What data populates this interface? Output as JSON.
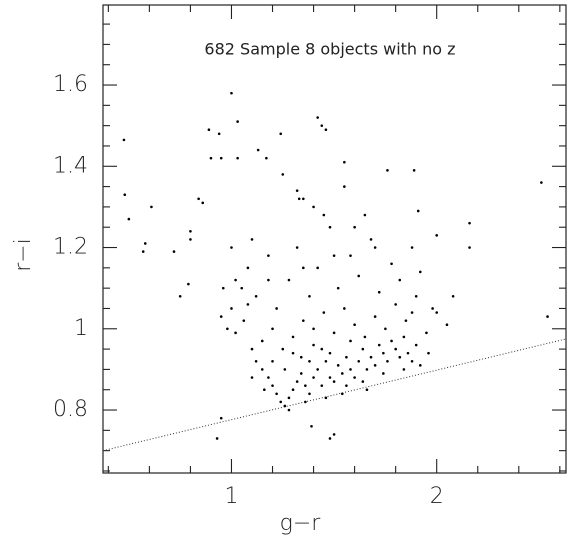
{
  "chart_data": {
    "type": "scatter",
    "annotation": "682 Sample 8 objects with no z",
    "x_label": "g−r",
    "y_label": "r−i",
    "color": "#000000",
    "x": [
      0.476,
      0.48,
      0.61,
      0.57,
      0.58,
      0.5,
      1.0,
      1.03,
      0.89,
      0.94,
      0.9,
      0.95,
      1.03,
      1.13,
      1.17,
      1.24,
      1.42,
      1.44,
      1.46,
      1.55,
      1.89,
      1.76,
      2.51,
      2.54,
      1.39,
      1.48,
      1.5,
      0.93,
      0.95,
      0.72,
      0.8,
      0.8,
      0.75,
      0.79,
      0.84,
      0.86,
      1.32,
      1.33,
      2.16,
      2.16,
      2.0,
      2.08,
      1.91,
      1.1,
      1.12,
      1.15,
      1.18,
      1.2,
      1.22,
      1.24,
      1.26,
      1.28,
      1.3,
      1.32,
      1.34,
      1.36,
      1.38,
      1.4,
      1.42,
      1.44,
      1.46,
      1.48,
      1.5,
      1.52,
      1.54,
      1.56,
      1.58,
      1.6,
      1.62,
      1.64,
      1.66,
      1.68,
      1.7,
      1.72,
      1.74,
      1.76,
      1.78,
      1.8,
      1.82,
      1.84,
      1.86,
      1.88,
      1.9,
      1.15,
      1.2,
      1.25,
      1.3,
      1.35,
      1.4,
      1.45,
      1.5,
      1.55,
      1.6,
      1.65,
      1.7,
      1.75,
      1.8,
      1.85,
      1.9,
      1.95,
      2.0,
      2.05,
      1.05,
      1.0,
      0.95,
      0.98,
      1.02,
      1.08,
      1.12,
      1.18,
      1.22,
      1.28,
      1.32,
      1.38,
      1.42,
      1.48,
      1.52,
      1.58,
      1.62,
      1.68,
      1.72,
      1.78,
      1.82,
      1.88,
      1.92,
      1.98,
      1.26,
      1.34,
      1.44,
      1.54,
      1.64,
      1.74,
      1.84,
      1.16,
      1.36,
      1.46,
      1.56,
      1.66,
      1.28,
      1.38,
      1.48,
      1.58,
      1.4,
      1.3,
      1.2,
      1.1,
      1.02,
      1.06,
      0.96,
      1.0,
      1.1,
      1.45,
      1.4,
      1.55,
      1.6,
      1.25,
      1.35,
      1.65,
      1.7,
      1.5,
      1.35,
      1.18,
      1.08,
      1.92,
      1.96,
      1.88
    ],
    "values": [
      1.465,
      1.33,
      1.3,
      1.19,
      1.21,
      1.27,
      1.58,
      1.51,
      1.49,
      1.48,
      1.42,
      1.42,
      1.42,
      1.44,
      1.42,
      1.48,
      1.52,
      1.5,
      1.49,
      1.41,
      1.39,
      1.39,
      1.36,
      1.03,
      0.76,
      0.73,
      0.74,
      0.73,
      0.78,
      1.19,
      1.24,
      1.22,
      1.08,
      1.11,
      1.32,
      1.31,
      1.34,
      1.32,
      1.26,
      1.2,
      1.23,
      1.08,
      1.29,
      0.95,
      0.92,
      0.9,
      0.88,
      0.86,
      0.84,
      0.82,
      0.81,
      0.83,
      0.85,
      0.87,
      0.89,
      0.86,
      0.84,
      0.88,
      0.9,
      0.86,
      0.92,
      0.88,
      0.87,
      0.91,
      0.89,
      0.93,
      0.9,
      0.88,
      0.92,
      0.95,
      0.9,
      0.93,
      0.91,
      0.96,
      0.94,
      0.92,
      0.97,
      0.95,
      0.93,
      0.98,
      0.94,
      0.92,
      0.96,
      0.97,
      1.0,
      0.95,
      0.98,
      1.02,
      0.96,
      1.04,
      0.99,
      1.05,
      1.01,
      0.98,
      1.03,
      1.0,
      1.06,
      1.02,
      1.08,
      0.99,
      1.04,
      1.01,
      1.1,
      1.05,
      1.03,
      1.0,
      1.12,
      1.15,
      1.08,
      1.18,
      1.05,
      1.12,
      1.2,
      1.08,
      1.15,
      1.25,
      1.1,
      1.18,
      1.13,
      1.22,
      1.09,
      1.16,
      1.12,
      1.2,
      1.14,
      1.05,
      0.9,
      0.93,
      0.95,
      0.84,
      0.87,
      0.89,
      0.9,
      0.85,
      0.82,
      0.83,
      0.86,
      0.85,
      0.8,
      0.92,
      0.94,
      0.97,
      1.0,
      0.94,
      0.92,
      0.88,
      0.99,
      1.02,
      1.1,
      1.2,
      1.22,
      1.28,
      1.3,
      1.35,
      1.25,
      1.38,
      1.32,
      1.28,
      1.2,
      1.18,
      1.15,
      1.12,
      1.06,
      0.91,
      0.94,
      1.04
    ],
    "reference_line": {
      "x": [
        0.374,
        2.63
      ],
      "y": [
        0.7,
        0.975
      ],
      "style": "dotted"
    },
    "xlim": [
      0.374,
      2.63
    ],
    "ylim": [
      0.645,
      1.797
    ],
    "xticks": [
      1,
      2
    ],
    "yticks": [
      0.8,
      1,
      1.2,
      1.4,
      1.6
    ],
    "xminorticks": [
      0.4,
      0.6,
      0.8,
      1.2,
      1.4,
      1.6,
      1.8,
      2.2,
      2.4,
      2.6
    ],
    "yminorticks": [
      0.65,
      0.7,
      0.75,
      0.85,
      0.9,
      0.95,
      1.05,
      1.1,
      1.15,
      1.25,
      1.3,
      1.35,
      1.45,
      1.5,
      1.55,
      1.65,
      1.7,
      1.75
    ]
  }
}
